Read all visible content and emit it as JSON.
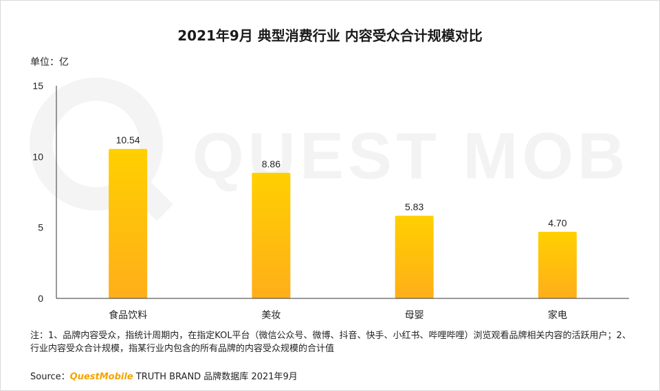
{
  "title": "2021年9月 典型消费行业 内容受众合计规模对比",
  "unit_label": "单位：亿",
  "watermark_text": "QUEST MOBILE",
  "note": "注：1、品牌内容受众，指统计周期内，在指定KOL平台（微信公众号、微博、抖音、快手、小红书、哔哩哔哩）浏览观看品牌相关内容的活跃用户；2、行业内容受众合计规模，指某行业内包含的所有品牌的内容受众规模的合计值",
  "source": {
    "prefix": "Source：",
    "brand_q": "Q",
    "brand_rest": "uestMobile",
    "suffix": " TRUTH BRAND 品牌数据库 2021年9月"
  },
  "chart_data": {
    "type": "bar",
    "categories": [
      "食品饮料",
      "美妆",
      "母婴",
      "家电"
    ],
    "values": [
      10.54,
      8.86,
      5.83,
      4.7
    ],
    "value_labels": [
      "10.54",
      "8.86",
      "5.83",
      "4.70"
    ],
    "title": "2021年9月 典型消费行业 内容受众合计规模对比",
    "ylabel": "单位：亿",
    "ylim": [
      0,
      15
    ],
    "yticks": [
      0,
      5,
      10,
      15
    ],
    "grid": false,
    "legend": "none",
    "colors": {
      "bar_top": "#ffd000",
      "bar_bottom": "#ffae1a",
      "axis": "#333333"
    }
  }
}
